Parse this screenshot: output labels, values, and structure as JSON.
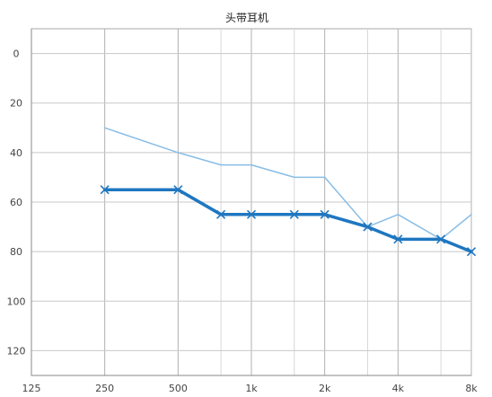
{
  "chart_data": {
    "type": "line",
    "title": "头带耳机",
    "x": [
      250,
      500,
      750,
      1000,
      1500,
      2000,
      3000,
      4000,
      6000,
      8000
    ],
    "x_ticks": [
      125,
      250,
      500,
      1000,
      2000,
      4000,
      8000
    ],
    "x_tick_labels": [
      "125",
      "250",
      "500",
      "1k",
      "2k",
      "4k",
      "8k"
    ],
    "x_minor_grid": [
      750,
      1500,
      3000,
      6000
    ],
    "x_scale": "log",
    "xlim": [
      125,
      8000
    ],
    "y_ticks": [
      0,
      20,
      40,
      60,
      80,
      100,
      120
    ],
    "y_tick_labels": [
      "0",
      "20",
      "40",
      "60",
      "80",
      "100",
      "120"
    ],
    "ylim": [
      -10,
      130
    ],
    "y_inverted": true,
    "grid": true,
    "series": [
      {
        "x": [
          250,
          500,
          750,
          1000,
          1500,
          2000,
          3000,
          4000,
          6000,
          8000
        ],
        "values": [
          30,
          40,
          45,
          45,
          50,
          50,
          70,
          65,
          75,
          65
        ],
        "color": "#88bde6",
        "marker": "none"
      },
      {
        "x": [
          250,
          500,
          750,
          1000,
          1500,
          2000,
          3000,
          4000,
          6000,
          8000
        ],
        "values": [
          55,
          55,
          65,
          65,
          65,
          65,
          70,
          75,
          75,
          80
        ],
        "color": "#1f77c0",
        "marker": "x"
      }
    ]
  }
}
